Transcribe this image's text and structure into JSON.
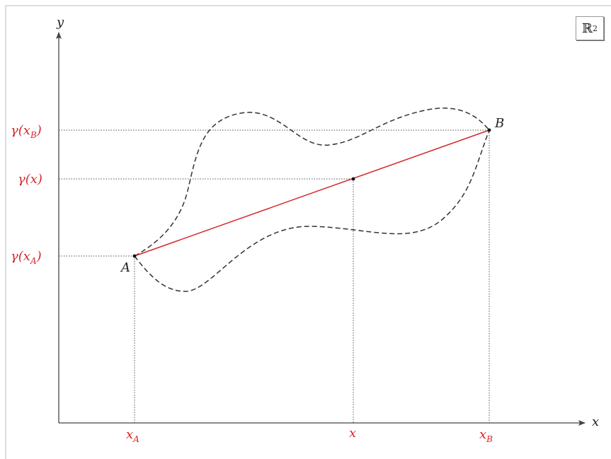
{
  "space_label": "ℝ",
  "space_exponent": "2",
  "axes": {
    "x_label": "x",
    "y_label": "y"
  },
  "points": {
    "a_label": "A",
    "b_label": "B"
  },
  "x_ticks": {
    "xa": "x",
    "xa_sub": "A",
    "x": "x",
    "xb": "x",
    "xb_sub": "B"
  },
  "y_ticks": {
    "gxb_pre": "γ(x",
    "gxb_sub": "B",
    "gxb_post": ")",
    "gx": "γ(x)",
    "gxa_pre": "γ(x",
    "gxa_sub": "A",
    "gxa_post": ")"
  },
  "colors": {
    "accent": "#d6262b",
    "ink": "#222222",
    "guide": "#555555"
  }
}
